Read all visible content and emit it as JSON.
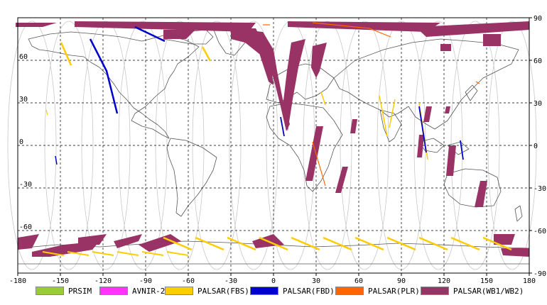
{
  "map": {
    "lon_ticks": [
      "-180",
      "-150",
      "-120",
      "-90",
      "-60",
      "-30",
      "0",
      "30",
      "60",
      "90",
      "120",
      "150",
      "180"
    ],
    "lat_ticks_right": [
      "90",
      "60",
      "30",
      "0",
      "-30",
      "-60",
      "-90"
    ],
    "lat_ticks_left_values": [
      "60",
      "30",
      "0",
      "-30",
      "-60"
    ],
    "grid_style": "dashed"
  },
  "legend": [
    {
      "label": "PRSIM",
      "color": "#99cc33"
    },
    {
      "label": "AVNIR-2",
      "color": "#ff33ff"
    },
    {
      "label": "PALSAR(FBS)",
      "color": "#ffcc00"
    },
    {
      "label": "PALSAR(FBD)",
      "color": "#0000cc"
    },
    {
      "label": "PALSAR(PLR)",
      "color": "#ff6600"
    },
    {
      "label": "PALSAR(WB1/WB2)",
      "color": "#993366"
    }
  ]
}
